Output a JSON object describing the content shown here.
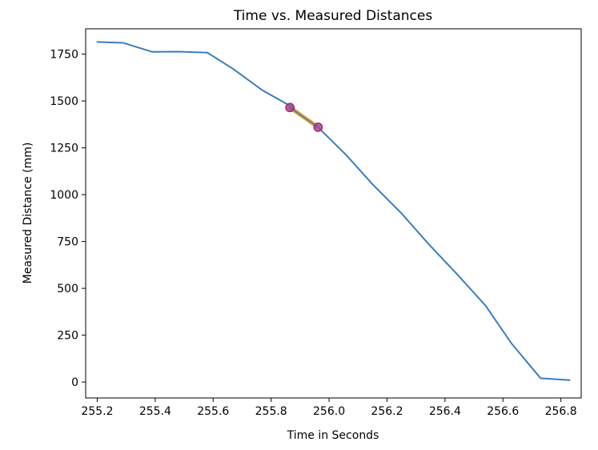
{
  "chart_data": {
    "type": "line",
    "title": "Time vs. Measured Distances",
    "xlabel": "Time in Seconds",
    "ylabel": "Measured Distance (mm)",
    "xlim": [
      255.16,
      256.87
    ],
    "ylim": [
      -85,
      1885
    ],
    "xticks": [
      255.2,
      255.4,
      255.6,
      255.8,
      256.0,
      256.2,
      256.4,
      256.6,
      256.8
    ],
    "yticks": [
      0,
      250,
      500,
      750,
      1000,
      1250,
      1500,
      1750
    ],
    "grid": false,
    "legend": "none",
    "series": [
      {
        "color": "#3a7dbf",
        "x": [
          255.2,
          255.29,
          255.39,
          255.48,
          255.58,
          255.67,
          255.77,
          255.87,
          255.96,
          256.06,
          256.15,
          256.25,
          256.34,
          256.44,
          256.54,
          256.63,
          256.73,
          256.83
        ],
        "y": [
          1815,
          1810,
          1762,
          1763,
          1758,
          1670,
          1557,
          1470,
          1363,
          1210,
          1055,
          900,
          742,
          578,
          408,
          205,
          20,
          10
        ]
      }
    ],
    "highlight": {
      "line_color": "#f2a530",
      "point_edge_color": "#c8205a",
      "point_face_color": "#7a4bb0",
      "points": [
        {
          "x": 255.865,
          "y": 1465
        },
        {
          "x": 255.962,
          "y": 1360
        }
      ]
    }
  }
}
